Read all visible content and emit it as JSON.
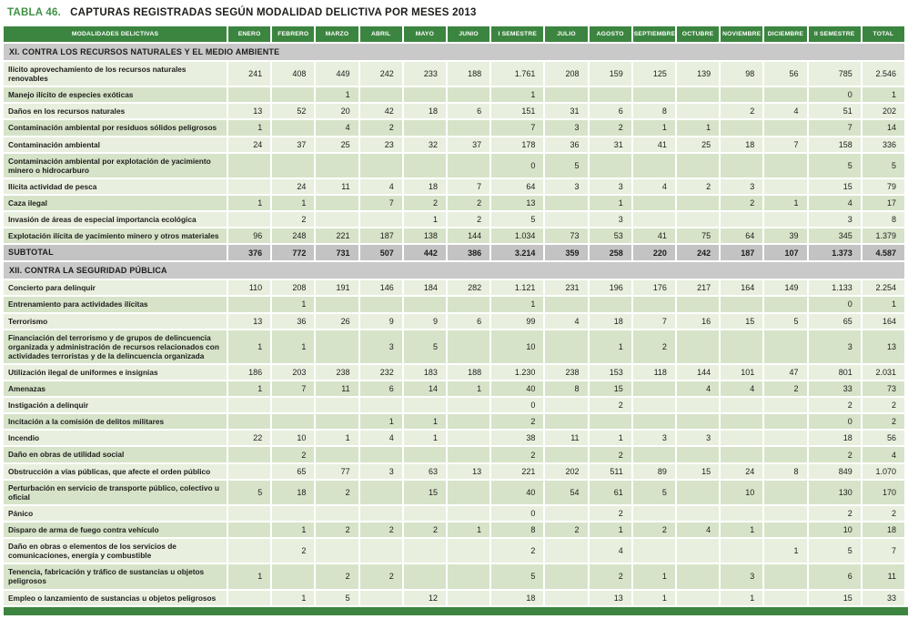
{
  "title": {
    "number": "TABLA 46.",
    "text": "CAPTURAS REGISTRADAS SEGÚN MODALIDAD DELICTIVA POR MESES 2013"
  },
  "colors": {
    "header_green": "#3c8540",
    "title_green": "#3f9143",
    "section_gray": "#c9c9c9",
    "subtotal_gray": "#c3c3c3",
    "row_light": "#e8efde",
    "row_dark": "#d6e3c8"
  },
  "table": {
    "columns": [
      "MODALIDADES DELICTIVAS",
      "ENERO",
      "FEBRERO",
      "MARZO",
      "ABRIL",
      "MAYO",
      "JUNIO",
      "I SEMESTRE",
      "JULIO",
      "AGOSTO",
      "SEPTIEMBRE",
      "OCTUBRE",
      "NOVIEMBRE",
      "DICIEMBRE",
      "II SEMESTRE",
      "TOTAL"
    ],
    "sections": [
      {
        "header": "XI. CONTRA LOS RECURSOS NATURALES Y EL MEDIO AMBIENTE",
        "rows": [
          {
            "label": "Ilícito aprovechamiento de los recursos naturales renovables",
            "values": [
              "241",
              "408",
              "449",
              "242",
              "233",
              "188",
              "1.761",
              "208",
              "159",
              "125",
              "139",
              "98",
              "56",
              "785",
              "2.546"
            ]
          },
          {
            "label": "Manejo ilícito de especies exóticas",
            "values": [
              "",
              "",
              "1",
              "",
              "",
              "",
              "1",
              "",
              "",
              "",
              "",
              "",
              "",
              "0",
              "1"
            ]
          },
          {
            "label": "Daños en los recursos naturales",
            "values": [
              "13",
              "52",
              "20",
              "42",
              "18",
              "6",
              "151",
              "31",
              "6",
              "8",
              "",
              "2",
              "4",
              "51",
              "202"
            ]
          },
          {
            "label": "Contaminación ambiental por residuos sólidos peligrosos",
            "values": [
              "1",
              "",
              "4",
              "2",
              "",
              "",
              "7",
              "3",
              "2",
              "1",
              "1",
              "",
              "",
              "7",
              "14"
            ]
          },
          {
            "label": "Contaminación ambiental",
            "values": [
              "24",
              "37",
              "25",
              "23",
              "32",
              "37",
              "178",
              "36",
              "31",
              "41",
              "25",
              "18",
              "7",
              "158",
              "336"
            ]
          },
          {
            "label": "Contaminación ambiental por explotación de yacimiento minero o hidrocarburo",
            "values": [
              "",
              "",
              "",
              "",
              "",
              "",
              "0",
              "5",
              "",
              "",
              "",
              "",
              "",
              "5",
              "5"
            ]
          },
          {
            "label": "Ilícita actividad de pesca",
            "values": [
              "",
              "24",
              "11",
              "4",
              "18",
              "7",
              "64",
              "3",
              "3",
              "4",
              "2",
              "3",
              "",
              "15",
              "79"
            ]
          },
          {
            "label": "Caza ilegal",
            "values": [
              "1",
              "1",
              "",
              "7",
              "2",
              "2",
              "13",
              "",
              "1",
              "",
              "",
              "2",
              "1",
              "4",
              "17"
            ]
          },
          {
            "label": "Invasión de áreas de especial importancia ecológica",
            "values": [
              "",
              "2",
              "",
              "",
              "1",
              "2",
              "5",
              "",
              "3",
              "",
              "",
              "",
              "",
              "3",
              "8"
            ]
          },
          {
            "label": "Explotación ilícita de yacimiento minero y otros materiales",
            "values": [
              "96",
              "248",
              "221",
              "187",
              "138",
              "144",
              "1.034",
              "73",
              "53",
              "41",
              "75",
              "64",
              "39",
              "345",
              "1.379"
            ]
          }
        ],
        "subtotal": {
          "label": "SUBTOTAL",
          "values": [
            "376",
            "772",
            "731",
            "507",
            "442",
            "386",
            "3.214",
            "359",
            "258",
            "220",
            "242",
            "187",
            "107",
            "1.373",
            "4.587"
          ]
        }
      },
      {
        "header": "XII. CONTRA LA SEGURIDAD PÚBLICA",
        "rows": [
          {
            "label": "Concierto para delinquir",
            "values": [
              "110",
              "208",
              "191",
              "146",
              "184",
              "282",
              "1.121",
              "231",
              "196",
              "176",
              "217",
              "164",
              "149",
              "1.133",
              "2.254"
            ]
          },
          {
            "label": "Entrenamiento para actividades ilícitas",
            "values": [
              "",
              "1",
              "",
              "",
              "",
              "",
              "1",
              "",
              "",
              "",
              "",
              "",
              "",
              "0",
              "1"
            ]
          },
          {
            "label": "Terrorismo",
            "values": [
              "13",
              "36",
              "26",
              "9",
              "9",
              "6",
              "99",
              "4",
              "18",
              "7",
              "16",
              "15",
              "5",
              "65",
              "164"
            ]
          },
          {
            "label": "Financiación del terrorismo y de grupos de delincuencia organizada y administración de recursos relacionados con actividades terroristas y de la delincuencia organizada",
            "values": [
              "1",
              "1",
              "",
              "3",
              "5",
              "",
              "10",
              "",
              "1",
              "2",
              "",
              "",
              "",
              "3",
              "13"
            ]
          },
          {
            "label": "Utilización ilegal de uniformes e insignias",
            "values": [
              "186",
              "203",
              "238",
              "232",
              "183",
              "188",
              "1.230",
              "238",
              "153",
              "118",
              "144",
              "101",
              "47",
              "801",
              "2.031"
            ]
          },
          {
            "label": "Amenazas",
            "values": [
              "1",
              "7",
              "11",
              "6",
              "14",
              "1",
              "40",
              "8",
              "15",
              "",
              "4",
              "4",
              "2",
              "33",
              "73"
            ]
          },
          {
            "label": "Instigación a delinquir",
            "values": [
              "",
              "",
              "",
              "",
              "",
              "",
              "0",
              "",
              "2",
              "",
              "",
              "",
              "",
              "2",
              "2"
            ]
          },
          {
            "label": "Incitación a la comisión de delitos militares",
            "values": [
              "",
              "",
              "",
              "1",
              "1",
              "",
              "2",
              "",
              "",
              "",
              "",
              "",
              "",
              "0",
              "2"
            ]
          },
          {
            "label": "Incendio",
            "values": [
              "22",
              "10",
              "1",
              "4",
              "1",
              "",
              "38",
              "11",
              "1",
              "3",
              "3",
              "",
              "",
              "18",
              "56"
            ]
          },
          {
            "label": "Daño en obras de utilidad social",
            "values": [
              "",
              "2",
              "",
              "",
              "",
              "",
              "2",
              "",
              "2",
              "",
              "",
              "",
              "",
              "2",
              "4"
            ]
          },
          {
            "label": "Obstrucción a vías públicas, que afecte el orden público",
            "values": [
              "",
              "65",
              "77",
              "3",
              "63",
              "13",
              "221",
              "202",
              "511",
              "89",
              "15",
              "24",
              "8",
              "849",
              "1.070"
            ]
          },
          {
            "label": "Perturbación en servicio de transporte público, colectivo u oficial",
            "values": [
              "5",
              "18",
              "2",
              "",
              "15",
              "",
              "40",
              "54",
              "61",
              "5",
              "",
              "10",
              "",
              "130",
              "170"
            ]
          },
          {
            "label": "Pánico",
            "values": [
              "",
              "",
              "",
              "",
              "",
              "",
              "0",
              "",
              "2",
              "",
              "",
              "",
              "",
              "2",
              "2"
            ]
          },
          {
            "label": "Disparo de arma de fuego contra vehículo",
            "values": [
              "",
              "1",
              "2",
              "2",
              "2",
              "1",
              "8",
              "2",
              "1",
              "2",
              "4",
              "1",
              "",
              "10",
              "18"
            ]
          },
          {
            "label": "Daño en obras o elementos de los servicios de comunicaciones, energía y combustible",
            "values": [
              "",
              "2",
              "",
              "",
              "",
              "",
              "2",
              "",
              "4",
              "",
              "",
              "",
              "1",
              "5",
              "7"
            ]
          },
          {
            "label": "Tenencia, fabricación y tráfico de sustancias u objetos peligrosos",
            "values": [
              "1",
              "",
              "2",
              "2",
              "",
              "",
              "5",
              "",
              "2",
              "1",
              "",
              "3",
              "",
              "6",
              "11"
            ]
          },
          {
            "label": "Empleo o lanzamiento de sustancias u objetos peligrosos",
            "values": [
              "",
              "1",
              "5",
              "",
              "12",
              "",
              "18",
              "",
              "13",
              "1",
              "",
              "1",
              "",
              "15",
              "33"
            ]
          }
        ]
      }
    ]
  }
}
